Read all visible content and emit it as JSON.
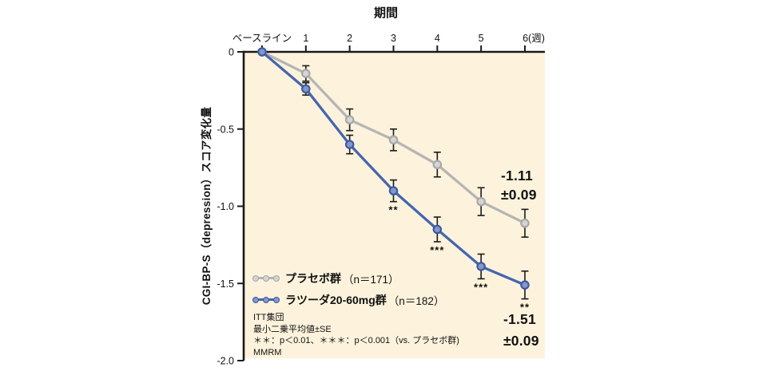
{
  "chart_data": {
    "type": "line",
    "title": "期間",
    "ylabel": "CGI-BP-S（depression）スコア変化量",
    "categories": [
      "ベースライン",
      "1",
      "2",
      "3",
      "4",
      "5",
      "6(週)"
    ],
    "y_ticks": [
      "0",
      "-0.5",
      "-1.0",
      "-1.5",
      "-2.0"
    ],
    "y_tick_values": [
      0,
      -0.5,
      -1.0,
      -1.5,
      -2.0
    ],
    "ylim": [
      -2.0,
      0
    ],
    "grid": false,
    "legend_position": "inside-bottom-left",
    "plot_bg": "#fdf3dc",
    "axis_color": "#1a1a1a",
    "error_bar_color": "#1a1a1a",
    "series": [
      {
        "id": "placebo",
        "name": "プラセボ群",
        "n_label": "（n＝171）",
        "color": "#b5b5b5",
        "marker_fill": "#d4d4d4",
        "marker_edge": "#a6a6a6",
        "values": [
          0,
          -0.14,
          -0.44,
          -0.57,
          -0.73,
          -0.97,
          -1.11
        ],
        "se": [
          0,
          0.05,
          0.07,
          0.07,
          0.08,
          0.09,
          0.09
        ]
      },
      {
        "id": "lurasidone",
        "name": "ラツーダ20-60mg群",
        "n_label": "（n＝182）",
        "color": "#4565ae",
        "marker_fill": "#8496c8",
        "marker_edge": "#3a58a2",
        "values": [
          0,
          -0.24,
          -0.6,
          -0.9,
          -1.15,
          -1.39,
          -1.51
        ],
        "se": [
          0,
          0.04,
          0.06,
          0.07,
          0.08,
          0.08,
          0.09
        ]
      }
    ],
    "significance": [
      {
        "week_index": 3,
        "label": "**"
      },
      {
        "week_index": 4,
        "label": "***"
      },
      {
        "week_index": 5,
        "label": "***"
      },
      {
        "week_index": 6,
        "label": "**"
      }
    ],
    "annotations": [
      {
        "series": "placebo",
        "value": "-1.11",
        "se": "±0.09"
      },
      {
        "series": "lurasidone",
        "value": "-1.51",
        "se": "±0.09"
      }
    ]
  },
  "footnotes": [
    "ITT集団",
    "最小二乗平均値±SE",
    "＊＊：p＜0.01、＊＊＊：p＜0.001（vs. プラセボ群)",
    "MMRM"
  ]
}
